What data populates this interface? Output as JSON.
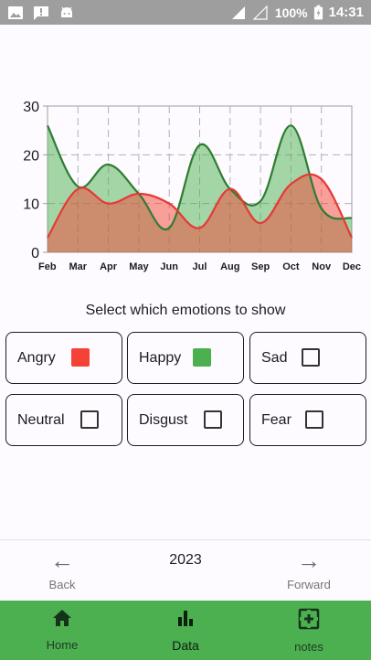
{
  "status_bar": {
    "battery": "100%",
    "time": "14:31"
  },
  "selection": {
    "title": "Select which emotions to show",
    "emotions": [
      {
        "label": "Angry",
        "checked": true,
        "color": "#f44336"
      },
      {
        "label": "Happy",
        "checked": true,
        "color": "#4caf50"
      },
      {
        "label": "Sad",
        "checked": false
      },
      {
        "label": "Neutral",
        "checked": false
      },
      {
        "label": "Disgust",
        "checked": false
      },
      {
        "label": "Fear",
        "checked": false
      }
    ]
  },
  "year_nav": {
    "back_label": "Back",
    "forward_label": "Forward",
    "year": "2023"
  },
  "bottom_nav": {
    "items": [
      {
        "label": "Home",
        "icon": "home-icon"
      },
      {
        "label": "Data",
        "icon": "bar-chart-icon",
        "active": true
      },
      {
        "label": "notes",
        "icon": "notes-icon"
      }
    ],
    "background": "#4caf50"
  },
  "chart_data": {
    "type": "area",
    "categories": [
      "Feb",
      "Mar",
      "Apr",
      "May",
      "Jun",
      "Jul",
      "Aug",
      "Sep",
      "Oct",
      "Nov",
      "Dec"
    ],
    "ylim": [
      0,
      30
    ],
    "yticks": [
      0,
      10,
      20,
      30
    ],
    "grid": true,
    "series": [
      {
        "values": [
          26,
          13.5,
          18,
          12,
          5,
          22,
          13,
          10.5,
          26,
          9,
          7
        ],
        "color": "#2e7d32",
        "fill": "#4caf50"
      },
      {
        "values": [
          3,
          13,
          10,
          12,
          10,
          5,
          13,
          6,
          14,
          15,
          3
        ],
        "color": "#e53935",
        "fill": "#f44336"
      }
    ]
  }
}
